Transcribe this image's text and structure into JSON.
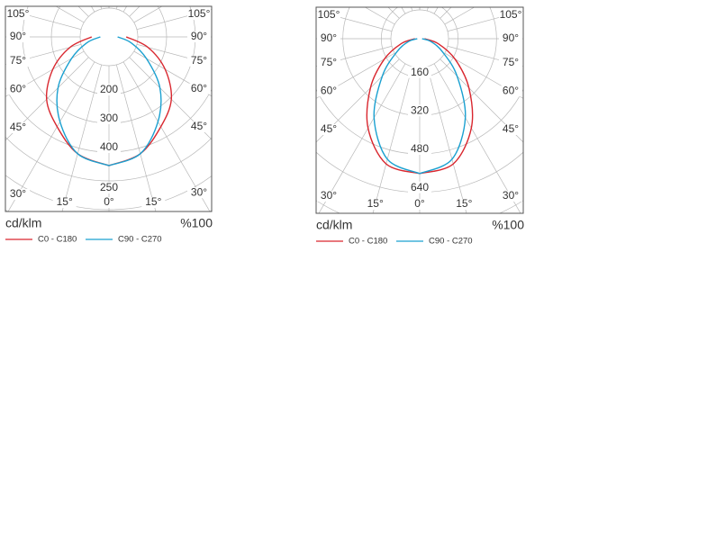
{
  "chart_data": [
    {
      "type": "polar",
      "radial_unit": "cd/klm",
      "scale_label": "%100",
      "scale_note": "250",
      "angles": [
        0,
        15,
        30,
        45,
        60,
        75,
        90
      ],
      "rticks": [
        200,
        300,
        400
      ],
      "angle_ticks": [
        {
          "value": 0,
          "label": "0°"
        },
        {
          "value": 15,
          "label": "15°"
        },
        {
          "value": 30,
          "label": "30°"
        },
        {
          "value": 45,
          "label": "45°"
        },
        {
          "value": 60,
          "label": "60°"
        },
        {
          "value": 75,
          "label": "75°"
        },
        {
          "value": 90,
          "label": "90°"
        },
        {
          "value": 105,
          "label": "105°"
        }
      ],
      "series": [
        {
          "name": "C0 - C180",
          "color": "#d9262e",
          "values": [
            447,
            420,
            360,
            306,
            225,
            140,
            60
          ]
        },
        {
          "name": "C90 - C270",
          "color": "#1aa0d0",
          "values": [
            447,
            420,
            340,
            250,
            150,
            80,
            30
          ]
        }
      ]
    },
    {
      "type": "polar",
      "radial_unit": "cd/klm",
      "scale_label": "%100",
      "angles": [
        0,
        15,
        30,
        45,
        60,
        75,
        90
      ],
      "rticks": [
        160,
        320,
        480,
        640
      ],
      "angle_ticks": [
        {
          "value": 0,
          "label": "0°"
        },
        {
          "value": 15,
          "label": "15°"
        },
        {
          "value": 30,
          "label": "30°"
        },
        {
          "value": 45,
          "label": "45°"
        },
        {
          "value": 60,
          "label": "60°"
        },
        {
          "value": 75,
          "label": "75°"
        },
        {
          "value": 90,
          "label": "90°"
        },
        {
          "value": 105,
          "label": "105°"
        }
      ],
      "series": [
        {
          "name": "C0 - C180",
          "color": "#d9262e",
          "values": [
            562,
            540,
            430,
            290,
            170,
            80,
            20
          ]
        },
        {
          "name": "C90 - C270",
          "color": "#1aa0d0",
          "values": [
            562,
            520,
            380,
            220,
            110,
            50,
            10
          ]
        }
      ]
    }
  ]
}
